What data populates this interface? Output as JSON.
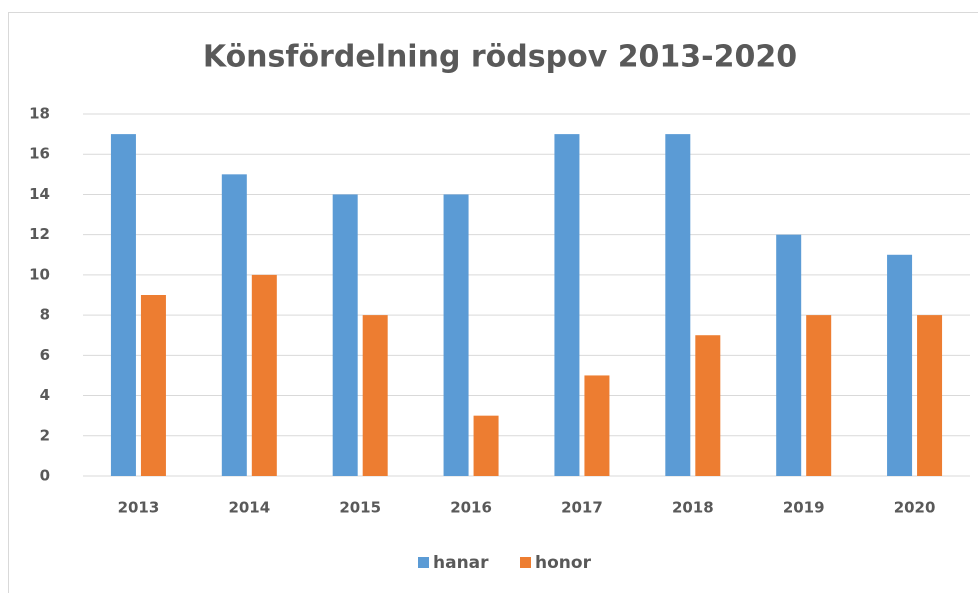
{
  "chart_data": {
    "type": "bar",
    "title": "Könsfördelning rödspov 2013-2020",
    "categories": [
      "2013",
      "2014",
      "2015",
      "2016",
      "2017",
      "2018",
      "2019",
      "2020"
    ],
    "series": [
      {
        "name": "hanar",
        "color": "#5b9bd5",
        "values": [
          17,
          15,
          14,
          14,
          17,
          17,
          12,
          11
        ]
      },
      {
        "name": "honor",
        "color": "#ed7d31",
        "values": [
          9,
          10,
          8,
          3,
          5,
          7,
          8,
          8
        ]
      }
    ],
    "ylim": [
      0,
      18
    ],
    "yticks": [
      0,
      2,
      4,
      6,
      8,
      10,
      12,
      14,
      16,
      18
    ],
    "grid": true,
    "legend": "bottom"
  }
}
